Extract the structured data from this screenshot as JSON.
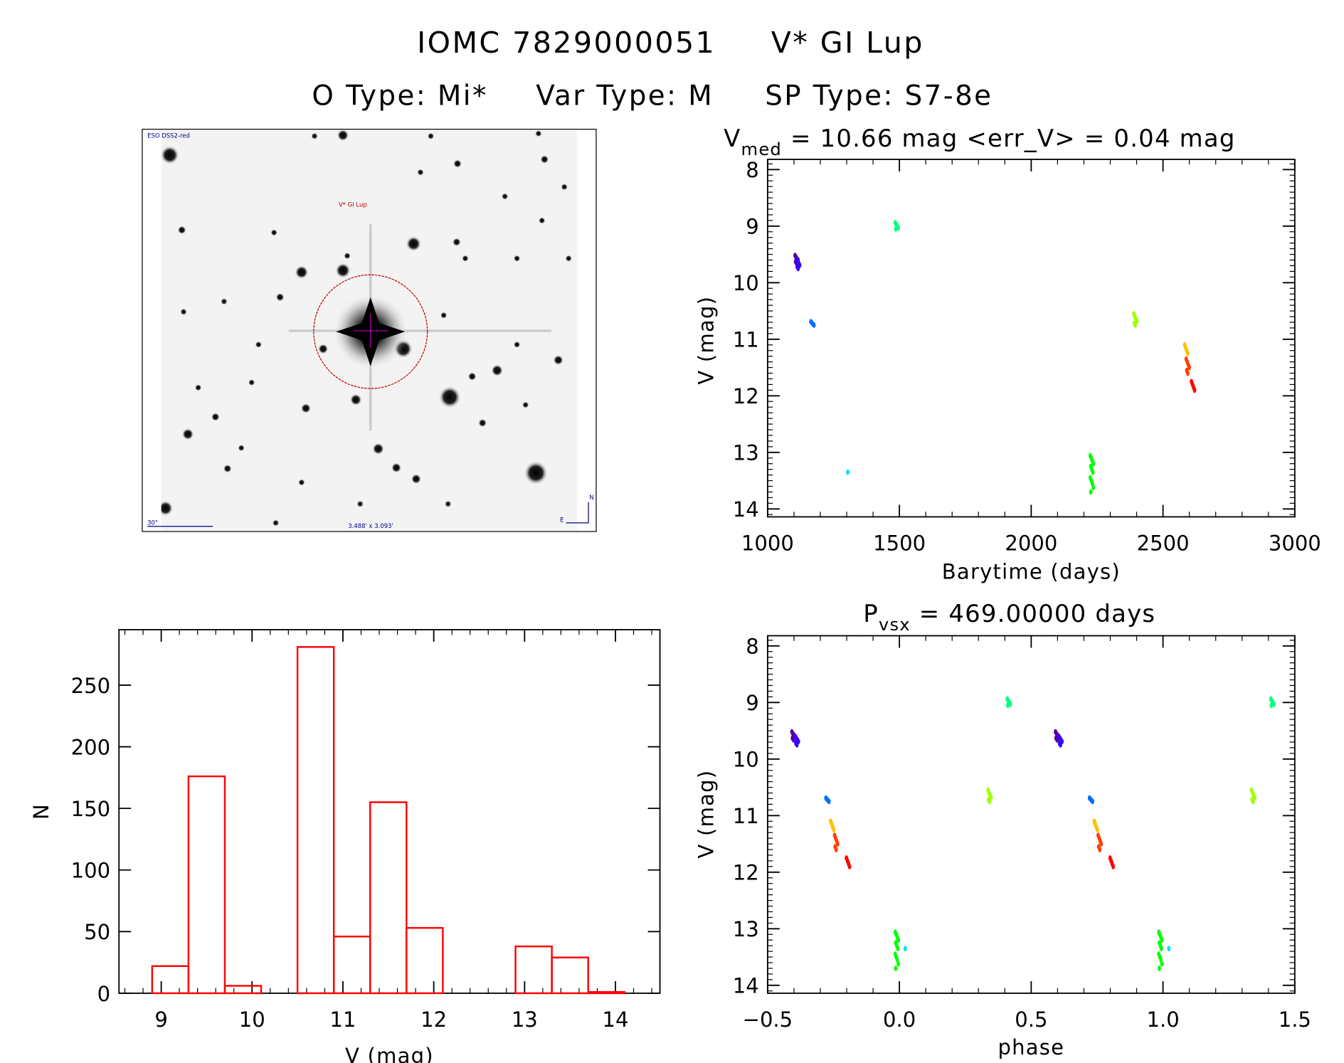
{
  "header": {
    "line1_id": "IOMC 7829000051",
    "line1_name": "V* GI Lup",
    "line2_otype": "O Type: Mi*",
    "line2_vartype": "Var Type: M",
    "line2_sptype": "SP Type: S7-8e"
  },
  "sky_image": {
    "survey_label": "ESO DSS2-red",
    "target_label": "V* GI Lup",
    "scale_label": "30\"",
    "fov_label": "3.488' x 3.093'",
    "north_label": "N",
    "east_label": "E",
    "circle_color": "#c00000",
    "label_color": "#00008b"
  },
  "chart_data": [
    {
      "type": "scatter",
      "title_main": "V",
      "title_sub": "med",
      "title_rest": " = 10.66 mag <err_V> = 0.04 mag",
      "xlabel": "Barytime (days)",
      "ylabel": "V (mag)",
      "xlim": [
        1000,
        3000
      ],
      "ylim": [
        14.14,
        7.82
      ],
      "y_inverted": true,
      "xticks": [
        1000,
        1500,
        2000,
        2500,
        3000
      ],
      "yticks": [
        8,
        9,
        10,
        11,
        12,
        13,
        14
      ],
      "clusters": [
        {
          "t": 1110,
          "color": "#5a0096",
          "v": [
            9.52,
            9.55,
            9.58,
            9.6,
            9.63,
            9.66
          ]
        },
        {
          "t": 1116,
          "color": "#3a00ff",
          "v": [
            9.6,
            9.63,
            9.66,
            9.69,
            9.72,
            9.75
          ]
        },
        {
          "t": 1170,
          "color": "#0070ff",
          "v": [
            10.69,
            10.71,
            10.73,
            10.75
          ]
        },
        {
          "t": 1310,
          "color": "#00e0ff",
          "v": [
            13.35
          ]
        },
        {
          "t": 1490,
          "color": "#00ff80",
          "v": [
            8.94,
            8.97,
            9.0,
            9.03,
            9.05
          ]
        },
        {
          "t": 2230,
          "color": "#00ff00",
          "v": [
            13.06,
            13.1,
            13.15,
            13.2,
            13.25,
            13.3,
            13.35,
            13.45,
            13.5,
            13.55,
            13.62,
            13.7
          ]
        },
        {
          "t": 2395,
          "color": "#a0ff00",
          "v": [
            10.55,
            10.6,
            10.64,
            10.68,
            10.72,
            10.75
          ]
        },
        {
          "t": 2588,
          "color": "#ffc000",
          "v": [
            11.1,
            11.15,
            11.2,
            11.25
          ]
        },
        {
          "t": 2594,
          "color": "#ff4000",
          "v": [
            11.35,
            11.4,
            11.45,
            11.5,
            11.55,
            11.6
          ]
        },
        {
          "t": 2614,
          "color": "#ff0000",
          "v": [
            11.75,
            11.8,
            11.85,
            11.9
          ]
        }
      ]
    },
    {
      "type": "scatter",
      "title_main": "P",
      "title_sub": "vsx",
      "title_rest": " = 469.00000 days",
      "xlabel": "phase",
      "ylabel": "V (mag)",
      "xlim": [
        -0.5,
        1.5
      ],
      "ylim": [
        14.14,
        7.82
      ],
      "y_inverted": true,
      "xticks": [
        -0.5,
        0.0,
        0.5,
        1.0,
        1.5
      ],
      "xtick_labels": [
        "−0.5",
        "0.0",
        "0.5",
        "1.0",
        "1.5"
      ],
      "yticks": [
        8,
        9,
        10,
        11,
        12,
        13,
        14
      ],
      "clusters": [
        {
          "phase": -0.402,
          "color": "#5a0096",
          "v": [
            9.52,
            9.55,
            9.58,
            9.6,
            9.63,
            9.66
          ]
        },
        {
          "phase": -0.389,
          "color": "#3a00ff",
          "v": [
            9.6,
            9.63,
            9.66,
            9.69,
            9.72,
            9.75
          ]
        },
        {
          "phase": -0.273,
          "color": "#0070ff",
          "v": [
            10.69,
            10.71,
            10.73,
            10.75
          ]
        },
        {
          "phase": 0.028,
          "color": "#00e0ff",
          "v": [
            13.35
          ]
        },
        {
          "phase": 0.415,
          "color": "#00ff80",
          "v": [
            8.94,
            8.97,
            9.0,
            9.03,
            9.05
          ]
        },
        {
          "phase": -0.01,
          "color": "#00ff00",
          "v": [
            13.06,
            13.1,
            13.15,
            13.2,
            13.25,
            13.3,
            13.35,
            13.45,
            13.5,
            13.55,
            13.62,
            13.7
          ]
        },
        {
          "phase": 0.342,
          "color": "#a0ff00",
          "v": [
            10.55,
            10.6,
            10.64,
            10.68,
            10.72,
            10.75
          ]
        },
        {
          "phase": -0.255,
          "color": "#ffc000",
          "v": [
            11.1,
            11.15,
            11.2,
            11.25
          ]
        },
        {
          "phase": -0.24,
          "color": "#ff4000",
          "v": [
            11.35,
            11.4,
            11.45,
            11.5,
            11.55,
            11.6
          ]
        },
        {
          "phase": -0.195,
          "color": "#ff0000",
          "v": [
            11.75,
            11.8,
            11.85,
            11.9
          ]
        }
      ]
    },
    {
      "type": "bar",
      "histogram": true,
      "xlabel": "V (mag)",
      "ylabel": "N",
      "xlim": [
        8.535,
        14.49
      ],
      "ylim": [
        0,
        295
      ],
      "xticks": [
        9,
        10,
        11,
        12,
        13,
        14
      ],
      "yticks": [
        0,
        50,
        100,
        150,
        200,
        250
      ],
      "bar_color": "#ff0000",
      "bin_edges": [
        8.9,
        9.3,
        9.7,
        10.1,
        10.5,
        10.9,
        11.3,
        11.7,
        12.1,
        12.5,
        12.9,
        13.3,
        13.7,
        14.1
      ],
      "values": [
        22,
        176,
        6,
        0,
        281,
        46,
        155,
        53,
        0,
        0,
        38,
        29,
        1
      ]
    }
  ]
}
